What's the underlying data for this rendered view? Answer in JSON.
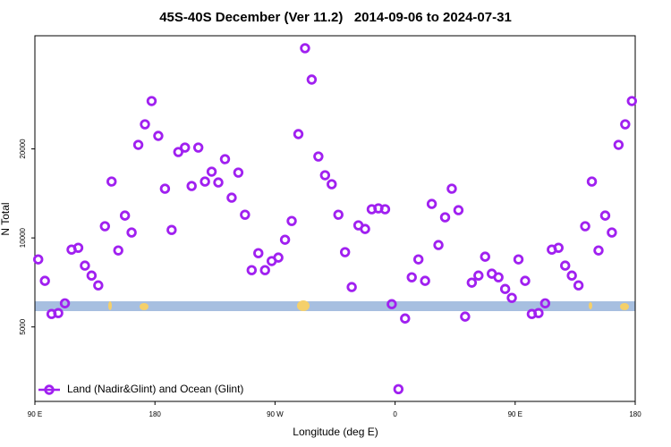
{
  "chart_data": {
    "type": "scatter",
    "title": "45S-40S December (Ver 11.2)   2014-09-06 to 2024-07-31",
    "xlabel": "Longitude (deg E)",
    "ylabel": "N Total",
    "xlim": [
      90,
      540
    ],
    "xticks": [
      {
        "value": 90,
        "label": "90 E"
      },
      180,
      {
        "value": 270,
        "label": "90 W"
      },
      {
        "value": 360,
        "label": "0"
      },
      {
        "value": 450,
        "label": "90 E"
      },
      {
        "value": 540,
        "label": "180"
      }
    ],
    "ylim": [
      2800,
      48260
    ],
    "yticks": [
      5000,
      10000,
      20000
    ],
    "log_y": true,
    "legend": "lower left",
    "series": [
      {
        "name": "Land (Nadir&Glint) and Ocean (Glint)",
        "color": "#a020f0",
        "x": [
          92.5,
          97.5,
          102.5,
          107.5,
          112.5,
          117.5,
          122.5,
          127.5,
          132.5,
          137.5,
          142.5,
          147.5,
          152.5,
          157.5,
          162.5,
          167.5,
          172.5,
          177.5,
          182.5,
          187.5,
          192.5,
          197.5,
          202.5,
          207.5,
          212.5,
          217.5,
          222.5,
          227.5,
          232.5,
          237.5,
          242.5,
          247.5,
          252.5,
          257.5,
          262.5,
          267.5,
          272.5,
          277.5,
          282.5,
          287.5,
          292.5,
          297.5,
          302.5,
          307.5,
          312.5,
          317.5,
          322.5,
          327.5,
          332.5,
          337.5,
          342.5,
          347.5,
          352.5,
          357.5,
          362.5,
          367.5,
          372.5,
          377.5,
          382.5,
          387.5,
          392.5,
          397.5,
          402.5,
          407.5,
          412.5,
          417.5,
          422.5,
          427.5,
          432.5,
          437.5,
          442.5,
          447.5,
          452.5,
          457.5,
          462.5,
          467.5,
          472.5,
          477.5,
          482.5,
          487.5,
          492.5,
          497.5,
          502.5,
          507.5,
          512.5,
          517.5,
          522.5,
          527.5,
          532.5,
          537.5
        ],
        "values": [
          8460,
          7160,
          5530,
          5570,
          6010,
          9130,
          9260,
          8060,
          7460,
          6910,
          10950,
          15510,
          9070,
          11900,
          10430,
          20640,
          24220,
          29030,
          22130,
          14670,
          10640,
          19520,
          20210,
          14980,
          20210,
          15510,
          16750,
          15400,
          18460,
          13680,
          16630,
          11980,
          7780,
          8880,
          7780,
          8350,
          8580,
          9860,
          11410,
          22440,
          43800,
          34310,
          18850,
          16290,
          15190,
          11980,
          8950,
          6820,
          11030,
          10720,
          12500,
          12590,
          12500,
          5970,
          3080,
          5340,
          7360,
          8460,
          7160,
          13030,
          9460,
          11740,
          14670,
          12410,
          5420,
          7060,
          7460,
          8640,
          7570,
          7360,
          6720,
          6270,
          8460,
          7160,
          5530,
          5570,
          6010,
          9130,
          9260,
          8060,
          7460,
          6910,
          10950,
          15510,
          9070,
          11900,
          10430,
          20640,
          24220,
          29030
        ]
      }
    ]
  }
}
